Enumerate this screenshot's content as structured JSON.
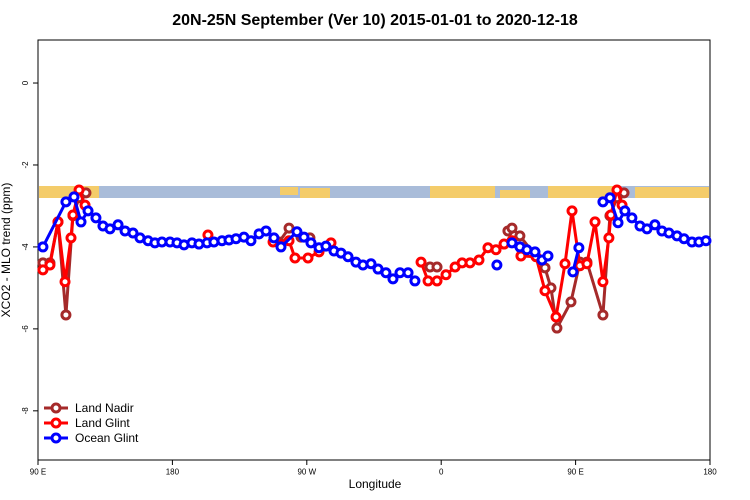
{
  "chart_data": {
    "type": "line",
    "title": "20N-25N September (Ver 10)   2015-01-01 to 2020-12-18",
    "x_label": "Longitude",
    "y_label": "XCO2 - MLO trend (ppm)",
    "xlim": [
      90,
      540
    ],
    "ylim": [
      -9.2,
      1.05
    ],
    "xticks": [
      {
        "value": 90,
        "label": "90 E"
      },
      {
        "value": 180,
        "label": "180"
      },
      {
        "value": 270,
        "label": "90 W"
      },
      {
        "value": 360,
        "label": "0"
      },
      {
        "value": 450,
        "label": "90 E"
      },
      {
        "value": 540,
        "label": "180"
      }
    ],
    "yticks": [
      0,
      -2,
      -4,
      -6,
      -8
    ],
    "legend": "bottom-left",
    "series": [
      {
        "name": "Land Nadir",
        "color": "#a52a2a",
        "x": [
          93.3,
          98,
          103.4,
          108.7,
          113.4,
          117.5,
          122.1,
          null,
          251.4,
          258.1,
          266.1,
          272.1,
          null,
          352.5,
          357.2,
          null,
          404.7,
          407.4,
          412.7,
          429.5,
          433.5,
          437.5,
          446.9,
          452.9,
          457.6,
          468.3,
          473,
          477.7,
          482.4
        ],
        "values": [
          -4.39,
          -4.39,
          -3.39,
          -5.66,
          -3.24,
          -2.8,
          -2.68,
          null,
          -3.88,
          -3.54,
          -3.76,
          -3.78,
          null,
          -4.49,
          -4.49,
          null,
          -3.61,
          -3.54,
          -3.73,
          -4.51,
          -5.0,
          -5.98,
          -5.34,
          -4.37,
          -4.37,
          -5.66,
          -3.24,
          -2.8,
          -2.68
        ]
      },
      {
        "name": "Land Glint",
        "color": "#ff0000",
        "x": [
          93.3,
          98,
          103.4,
          108.1,
          112.1,
          113.4,
          117.5,
          121.5,
          null,
          203.8,
          null,
          247.4,
          252.7,
          258.1,
          262.1,
          270.8,
          278.2,
          286.2,
          null,
          346.5,
          351.2,
          357.2,
          363.2,
          369.3,
          374,
          379.3,
          385.3,
          391.3,
          396.7,
          402.1,
          407.4,
          413.4,
          423.5,
          429.5,
          436.9,
          442.9,
          447.6,
          452.9,
          457.6,
          463,
          468.3,
          472.3,
          473.6,
          477.7,
          481.1
        ],
        "values": [
          -4.56,
          -4.44,
          -3.39,
          -4.85,
          -3.78,
          -3.22,
          -2.61,
          -2.98,
          null,
          -3.71,
          null,
          -3.88,
          -3.95,
          -3.85,
          -4.27,
          -4.27,
          -4.12,
          -3.9,
          null,
          -4.37,
          -4.83,
          -4.83,
          -4.68,
          -4.49,
          -4.39,
          -4.39,
          -4.32,
          -4.02,
          -4.07,
          -3.93,
          -3.85,
          -4.22,
          -4.24,
          -5.07,
          -5.71,
          -4.41,
          -3.12,
          -4.46,
          -4.41,
          -3.39,
          -4.85,
          -3.78,
          -3.22,
          -2.61,
          -2.98
        ]
      },
      {
        "name": "Ocean Glint",
        "color": "#0000ff",
        "x": [
          93.3,
          108.7,
          114.1,
          118.8,
          123.5,
          128.8,
          133.5,
          138.2,
          143.6,
          148.3,
          153.6,
          158.3,
          163.7,
          168.3,
          173,
          178.4,
          183.1,
          187.8,
          193.1,
          197.8,
          203.2,
          207.8,
          213.2,
          217.9,
          222.6,
          227.9,
          232.6,
          238,
          242.7,
          248,
          252.7,
          263.4,
          268.1,
          272.8,
          278.2,
          282.8,
          288.2,
          292.9,
          297.6,
          302.9,
          307.6,
          313,
          317.7,
          323,
          327.7,
          332.4,
          337.8,
          342.4,
          null,
          397.3,
          null,
          407.4,
          412.7,
          417.4,
          422.8,
          427.5,
          431.5,
          null,
          448.2,
          452.2,
          null,
          468.3,
          473,
          478.4,
          483,
          487.7,
          493.1,
          497.8,
          503.1,
          507.8,
          512.5,
          517.9,
          522.6,
          527.9,
          532.6,
          537.3
        ],
        "values": [
          -4.0,
          -2.9,
          -2.78,
          -3.39,
          -3.12,
          -3.29,
          -3.49,
          -3.56,
          -3.46,
          -3.61,
          -3.66,
          -3.78,
          -3.85,
          -3.9,
          -3.88,
          -3.88,
          -3.9,
          -3.95,
          -3.9,
          -3.93,
          -3.9,
          -3.88,
          -3.85,
          -3.83,
          -3.8,
          -3.76,
          -3.85,
          -3.68,
          -3.61,
          -3.78,
          -4.0,
          -3.63,
          -3.76,
          -3.9,
          -4.02,
          -3.98,
          -4.1,
          -4.15,
          -4.24,
          -4.37,
          -4.44,
          -4.41,
          -4.54,
          -4.63,
          -4.78,
          -4.63,
          -4.63,
          -4.83,
          null,
          -4.44,
          null,
          -3.9,
          -4.0,
          -4.07,
          -4.12,
          -4.32,
          -4.22,
          null,
          -4.61,
          -4.02,
          null,
          -2.9,
          -2.8,
          -3.41,
          -3.12,
          -3.29,
          -3.49,
          -3.56,
          -3.46,
          -3.61,
          -3.66,
          -3.73,
          -3.8,
          -3.88,
          -3.88,
          -3.85
        ]
      }
    ]
  }
}
